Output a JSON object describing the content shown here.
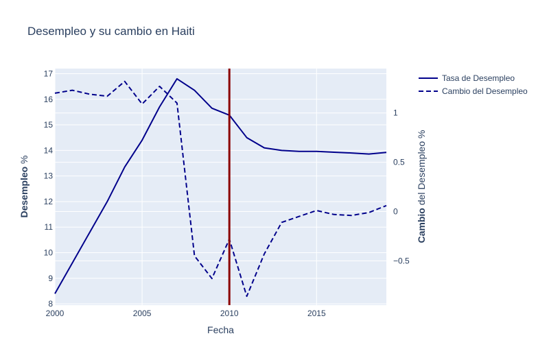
{
  "chart_data": {
    "type": "line",
    "title": "Desempleo y su cambio en Haiti",
    "xlabel": "Fecha",
    "ylabel_bold": "Desempleo",
    "ylabel_rest": " %",
    "y2label_bold": "Cambio",
    "y2label_rest": " del Desempleo %",
    "xlim": [
      2000,
      2019
    ],
    "ylim": [
      7.95,
      17.2
    ],
    "y2lim": [
      -0.95,
      1.45
    ],
    "x_ticks": [
      2000,
      2005,
      2010,
      2015
    ],
    "y_ticks": [
      8,
      9,
      10,
      11,
      12,
      13,
      14,
      15,
      16,
      17
    ],
    "y2_ticks": [
      -0.5,
      0,
      0.5,
      1
    ],
    "y2_tick_labels": [
      "−0.5",
      "0",
      "0.5",
      "1"
    ],
    "vline": {
      "x": 2010,
      "color": "#8b0000"
    },
    "series": [
      {
        "name": "Tasa de Desempleo",
        "axis": "y",
        "dash": "solid",
        "color": "#00008b",
        "x": [
          2000,
          2001,
          2002,
          2003,
          2004,
          2005,
          2006,
          2007,
          2008,
          2009,
          2010,
          2011,
          2012,
          2013,
          2014,
          2015,
          2016,
          2017,
          2018,
          2019
        ],
        "values": [
          8.4,
          9.6,
          10.8,
          12.0,
          13.35,
          14.4,
          15.7,
          16.8,
          16.35,
          15.65,
          15.38,
          14.5,
          14.1,
          14.0,
          13.96,
          13.96,
          13.93,
          13.9,
          13.86,
          13.92
        ]
      },
      {
        "name": "Cambio del Desempleo",
        "axis": "y2",
        "dash": "dash",
        "color": "#00008b",
        "x": [
          2000,
          2001,
          2002,
          2003,
          2004,
          2005,
          2006,
          2007,
          2008,
          2009,
          2010,
          2011,
          2012,
          2013,
          2014,
          2015,
          2016,
          2017,
          2018,
          2019
        ],
        "values": [
          1.2,
          1.23,
          1.19,
          1.17,
          1.32,
          1.09,
          1.27,
          1.1,
          -0.45,
          -0.68,
          -0.28,
          -0.86,
          -0.43,
          -0.11,
          -0.05,
          0.01,
          -0.03,
          -0.04,
          -0.01,
          0.06
        ]
      }
    ],
    "legend_position": "top-right",
    "grid": true
  }
}
